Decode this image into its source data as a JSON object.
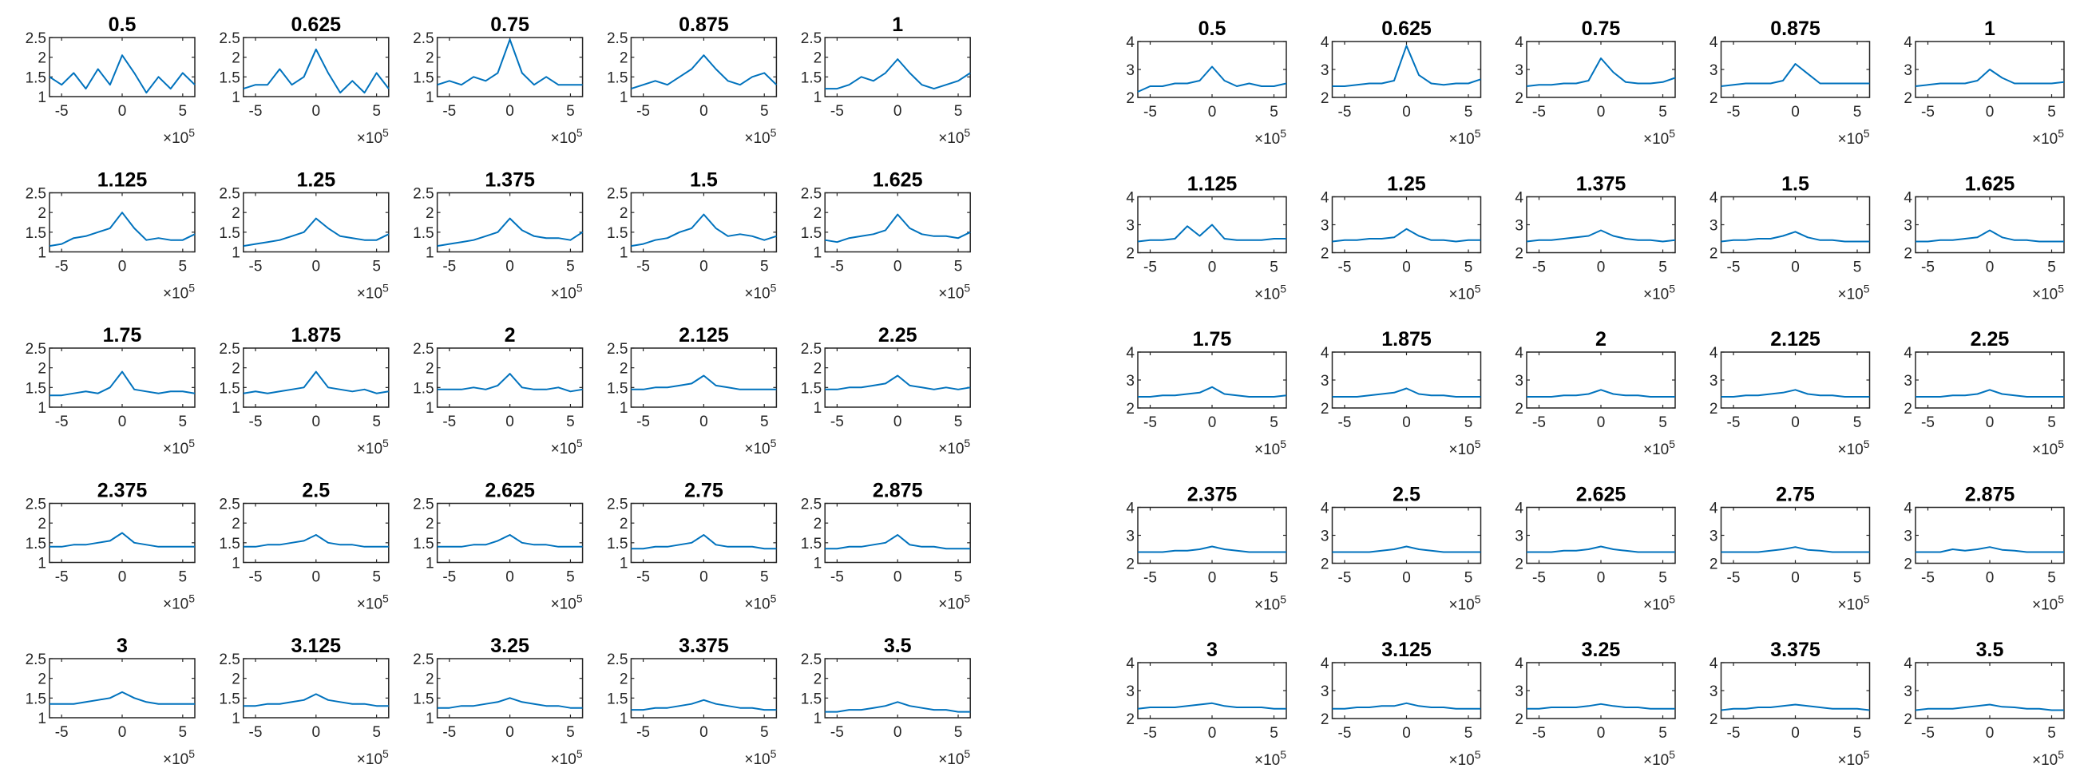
{
  "chart_data": [
    {
      "type": "line",
      "layout": "5x5 small multiples",
      "line_color": "#0072BD",
      "x_exponent_label": "×10^5",
      "xlim": [
        -6,
        6
      ],
      "xticks": [
        -5,
        0,
        5
      ],
      "ylim": [
        1,
        2.5
      ],
      "yticks": [
        1,
        1.5,
        2,
        2.5
      ],
      "ytick_labels": [
        "1",
        "1.5",
        "2",
        "2.5"
      ],
      "x": [
        -6,
        -5,
        -4,
        -3,
        -2,
        -1,
        0,
        1,
        2,
        3,
        4,
        5,
        6
      ],
      "panels": [
        {
          "title": "0.5",
          "values": [
            1.5,
            1.3,
            1.6,
            1.2,
            1.7,
            1.3,
            2.05,
            1.6,
            1.1,
            1.5,
            1.2,
            1.6,
            1.3
          ]
        },
        {
          "title": "0.625",
          "values": [
            1.2,
            1.3,
            1.3,
            1.7,
            1.3,
            1.5,
            2.2,
            1.6,
            1.1,
            1.4,
            1.1,
            1.6,
            1.2
          ]
        },
        {
          "title": "0.75",
          "values": [
            1.3,
            1.4,
            1.3,
            1.5,
            1.4,
            1.6,
            2.45,
            1.6,
            1.3,
            1.5,
            1.3,
            1.3,
            1.3
          ]
        },
        {
          "title": "0.875",
          "values": [
            1.2,
            1.3,
            1.4,
            1.3,
            1.5,
            1.7,
            2.05,
            1.7,
            1.4,
            1.3,
            1.5,
            1.6,
            1.3
          ]
        },
        {
          "title": "1",
          "values": [
            1.2,
            1.2,
            1.3,
            1.5,
            1.4,
            1.6,
            1.95,
            1.6,
            1.3,
            1.2,
            1.3,
            1.4,
            1.6
          ]
        },
        {
          "title": "1.125",
          "values": [
            1.15,
            1.2,
            1.35,
            1.4,
            1.5,
            1.6,
            2.0,
            1.6,
            1.3,
            1.35,
            1.3,
            1.3,
            1.45
          ]
        },
        {
          "title": "1.25",
          "values": [
            1.15,
            1.2,
            1.25,
            1.3,
            1.4,
            1.5,
            1.85,
            1.6,
            1.4,
            1.35,
            1.3,
            1.3,
            1.45
          ]
        },
        {
          "title": "1.375",
          "values": [
            1.15,
            1.2,
            1.25,
            1.3,
            1.4,
            1.5,
            1.85,
            1.55,
            1.4,
            1.35,
            1.35,
            1.3,
            1.5
          ]
        },
        {
          "title": "1.5",
          "values": [
            1.15,
            1.2,
            1.3,
            1.35,
            1.5,
            1.6,
            1.95,
            1.6,
            1.4,
            1.45,
            1.4,
            1.3,
            1.4
          ]
        },
        {
          "title": "1.625",
          "values": [
            1.3,
            1.25,
            1.35,
            1.4,
            1.45,
            1.55,
            1.95,
            1.6,
            1.45,
            1.4,
            1.4,
            1.35,
            1.5
          ]
        },
        {
          "title": "1.75",
          "values": [
            1.3,
            1.3,
            1.35,
            1.4,
            1.35,
            1.5,
            1.9,
            1.45,
            1.4,
            1.35,
            1.4,
            1.4,
            1.35
          ]
        },
        {
          "title": "1.875",
          "values": [
            1.35,
            1.4,
            1.35,
            1.4,
            1.45,
            1.5,
            1.9,
            1.5,
            1.45,
            1.4,
            1.45,
            1.35,
            1.4
          ]
        },
        {
          "title": "2",
          "values": [
            1.45,
            1.45,
            1.45,
            1.5,
            1.45,
            1.55,
            1.85,
            1.5,
            1.45,
            1.45,
            1.5,
            1.4,
            1.45
          ]
        },
        {
          "title": "2.125",
          "values": [
            1.45,
            1.45,
            1.5,
            1.5,
            1.55,
            1.6,
            1.8,
            1.55,
            1.5,
            1.45,
            1.45,
            1.45,
            1.45
          ]
        },
        {
          "title": "2.25",
          "values": [
            1.45,
            1.45,
            1.5,
            1.5,
            1.55,
            1.6,
            1.8,
            1.55,
            1.5,
            1.45,
            1.5,
            1.45,
            1.5
          ]
        },
        {
          "title": "2.375",
          "values": [
            1.4,
            1.4,
            1.45,
            1.45,
            1.5,
            1.55,
            1.75,
            1.5,
            1.45,
            1.4,
            1.4,
            1.4,
            1.4
          ]
        },
        {
          "title": "2.5",
          "values": [
            1.4,
            1.4,
            1.45,
            1.45,
            1.5,
            1.55,
            1.7,
            1.5,
            1.45,
            1.45,
            1.4,
            1.4,
            1.4
          ]
        },
        {
          "title": "2.625",
          "values": [
            1.4,
            1.4,
            1.4,
            1.45,
            1.45,
            1.55,
            1.7,
            1.5,
            1.45,
            1.45,
            1.4,
            1.4,
            1.4
          ]
        },
        {
          "title": "2.75",
          "values": [
            1.35,
            1.35,
            1.4,
            1.4,
            1.45,
            1.5,
            1.7,
            1.45,
            1.4,
            1.4,
            1.4,
            1.35,
            1.35
          ]
        },
        {
          "title": "2.875",
          "values": [
            1.35,
            1.35,
            1.4,
            1.4,
            1.45,
            1.5,
            1.7,
            1.45,
            1.4,
            1.4,
            1.35,
            1.35,
            1.35
          ]
        },
        {
          "title": "3",
          "values": [
            1.35,
            1.35,
            1.35,
            1.4,
            1.45,
            1.5,
            1.65,
            1.5,
            1.4,
            1.35,
            1.35,
            1.35,
            1.35
          ]
        },
        {
          "title": "3.125",
          "values": [
            1.3,
            1.3,
            1.35,
            1.35,
            1.4,
            1.45,
            1.6,
            1.45,
            1.4,
            1.35,
            1.35,
            1.3,
            1.3
          ]
        },
        {
          "title": "3.25",
          "values": [
            1.25,
            1.25,
            1.3,
            1.3,
            1.35,
            1.4,
            1.5,
            1.4,
            1.35,
            1.3,
            1.3,
            1.25,
            1.25
          ]
        },
        {
          "title": "3.375",
          "values": [
            1.2,
            1.2,
            1.25,
            1.25,
            1.3,
            1.35,
            1.45,
            1.35,
            1.3,
            1.25,
            1.25,
            1.2,
            1.2
          ]
        },
        {
          "title": "3.5",
          "values": [
            1.15,
            1.15,
            1.2,
            1.2,
            1.25,
            1.3,
            1.4,
            1.3,
            1.25,
            1.2,
            1.2,
            1.15,
            1.15
          ]
        }
      ]
    },
    {
      "type": "line",
      "layout": "5x5 small multiples",
      "line_color": "#0072BD",
      "x_exponent_label": "×10^5",
      "xlim": [
        -6,
        6
      ],
      "xticks": [
        -5,
        0,
        5
      ],
      "ylim": [
        2,
        4
      ],
      "yticks": [
        2,
        3,
        4
      ],
      "ytick_labels": [
        "2",
        "3",
        "4"
      ],
      "x": [
        -6,
        -5,
        -4,
        -3,
        -2,
        -1,
        0,
        1,
        2,
        3,
        4,
        5,
        6
      ],
      "panels": [
        {
          "title": "0.5",
          "values": [
            2.2,
            2.4,
            2.4,
            2.5,
            2.5,
            2.6,
            3.1,
            2.6,
            2.4,
            2.5,
            2.4,
            2.4,
            2.5
          ]
        },
        {
          "title": "0.625",
          "values": [
            2.4,
            2.4,
            2.45,
            2.5,
            2.5,
            2.6,
            3.85,
            2.8,
            2.5,
            2.45,
            2.5,
            2.5,
            2.65
          ]
        },
        {
          "title": "0.75",
          "values": [
            2.4,
            2.45,
            2.45,
            2.5,
            2.5,
            2.6,
            3.4,
            2.9,
            2.55,
            2.5,
            2.5,
            2.55,
            2.7
          ]
        },
        {
          "title": "0.875",
          "values": [
            2.4,
            2.45,
            2.5,
            2.5,
            2.5,
            2.6,
            3.2,
            2.85,
            2.5,
            2.5,
            2.5,
            2.5,
            2.5
          ]
        },
        {
          "title": "1",
          "values": [
            2.4,
            2.45,
            2.5,
            2.5,
            2.5,
            2.6,
            3.0,
            2.7,
            2.5,
            2.5,
            2.5,
            2.5,
            2.55
          ]
        },
        {
          "title": "1.125",
          "values": [
            2.4,
            2.45,
            2.45,
            2.5,
            2.95,
            2.6,
            3.0,
            2.5,
            2.45,
            2.45,
            2.45,
            2.5,
            2.5
          ]
        },
        {
          "title": "1.25",
          "values": [
            2.4,
            2.45,
            2.45,
            2.5,
            2.5,
            2.55,
            2.85,
            2.6,
            2.45,
            2.45,
            2.4,
            2.45,
            2.45
          ]
        },
        {
          "title": "1.375",
          "values": [
            2.4,
            2.45,
            2.45,
            2.5,
            2.55,
            2.6,
            2.8,
            2.6,
            2.5,
            2.45,
            2.45,
            2.4,
            2.45
          ]
        },
        {
          "title": "1.5",
          "values": [
            2.4,
            2.45,
            2.45,
            2.5,
            2.5,
            2.6,
            2.75,
            2.55,
            2.45,
            2.45,
            2.4,
            2.4,
            2.4
          ]
        },
        {
          "title": "1.625",
          "values": [
            2.4,
            2.4,
            2.45,
            2.45,
            2.5,
            2.55,
            2.8,
            2.55,
            2.45,
            2.45,
            2.4,
            2.4,
            2.4
          ]
        },
        {
          "title": "1.75",
          "values": [
            2.4,
            2.4,
            2.45,
            2.45,
            2.5,
            2.55,
            2.75,
            2.5,
            2.45,
            2.4,
            2.4,
            2.4,
            2.45
          ]
        },
        {
          "title": "1.875",
          "values": [
            2.4,
            2.4,
            2.4,
            2.45,
            2.5,
            2.55,
            2.7,
            2.5,
            2.45,
            2.45,
            2.4,
            2.4,
            2.4
          ]
        },
        {
          "title": "2",
          "values": [
            2.4,
            2.4,
            2.4,
            2.45,
            2.45,
            2.5,
            2.65,
            2.5,
            2.45,
            2.45,
            2.4,
            2.4,
            2.4
          ]
        },
        {
          "title": "2.125",
          "values": [
            2.4,
            2.4,
            2.45,
            2.45,
            2.5,
            2.55,
            2.65,
            2.5,
            2.45,
            2.45,
            2.4,
            2.4,
            2.4
          ]
        },
        {
          "title": "2.25",
          "values": [
            2.4,
            2.4,
            2.4,
            2.45,
            2.45,
            2.5,
            2.65,
            2.5,
            2.45,
            2.4,
            2.4,
            2.4,
            2.4
          ]
        },
        {
          "title": "2.375",
          "values": [
            2.4,
            2.4,
            2.4,
            2.45,
            2.45,
            2.5,
            2.6,
            2.5,
            2.45,
            2.4,
            2.4,
            2.4,
            2.4
          ]
        },
        {
          "title": "2.5",
          "values": [
            2.4,
            2.4,
            2.4,
            2.4,
            2.45,
            2.5,
            2.6,
            2.5,
            2.45,
            2.4,
            2.4,
            2.4,
            2.4
          ]
        },
        {
          "title": "2.625",
          "values": [
            2.4,
            2.4,
            2.4,
            2.45,
            2.45,
            2.5,
            2.6,
            2.5,
            2.45,
            2.4,
            2.4,
            2.4,
            2.4
          ]
        },
        {
          "title": "2.75",
          "values": [
            2.4,
            2.4,
            2.4,
            2.4,
            2.45,
            2.5,
            2.58,
            2.48,
            2.45,
            2.4,
            2.4,
            2.4,
            2.4
          ]
        },
        {
          "title": "2.875",
          "values": [
            2.4,
            2.4,
            2.4,
            2.5,
            2.45,
            2.5,
            2.58,
            2.48,
            2.45,
            2.4,
            2.4,
            2.4,
            2.4
          ]
        },
        {
          "title": "3",
          "values": [
            2.35,
            2.4,
            2.4,
            2.4,
            2.45,
            2.5,
            2.55,
            2.45,
            2.4,
            2.4,
            2.4,
            2.35,
            2.35
          ]
        },
        {
          "title": "3.125",
          "values": [
            2.35,
            2.35,
            2.4,
            2.4,
            2.45,
            2.45,
            2.55,
            2.45,
            2.4,
            2.4,
            2.35,
            2.35,
            2.35
          ]
        },
        {
          "title": "3.25",
          "values": [
            2.35,
            2.35,
            2.4,
            2.4,
            2.4,
            2.45,
            2.52,
            2.45,
            2.4,
            2.4,
            2.35,
            2.35,
            2.35
          ]
        },
        {
          "title": "3.375",
          "values": [
            2.3,
            2.35,
            2.35,
            2.4,
            2.4,
            2.45,
            2.5,
            2.45,
            2.4,
            2.35,
            2.35,
            2.35,
            2.3
          ]
        },
        {
          "title": "3.5",
          "values": [
            2.3,
            2.35,
            2.35,
            2.35,
            2.4,
            2.45,
            2.5,
            2.42,
            2.4,
            2.35,
            2.35,
            2.3,
            2.3
          ]
        }
      ]
    }
  ]
}
